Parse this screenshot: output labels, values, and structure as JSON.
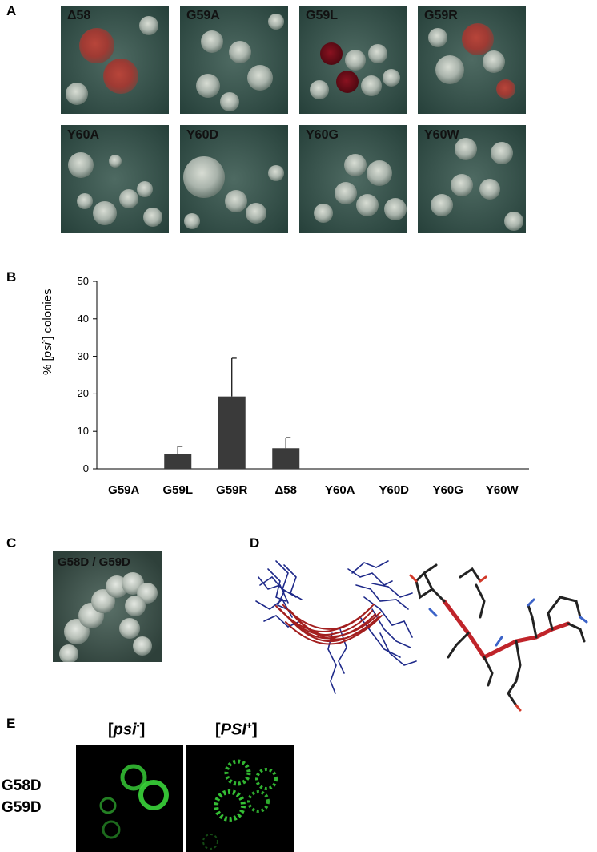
{
  "panels": {
    "a": "A",
    "b": "B",
    "c": "C",
    "d": "D",
    "e": "E"
  },
  "panel_a": {
    "colonies": [
      {
        "label": "Δ58",
        "tint": "red"
      },
      {
        "label": "G59A",
        "tint": "white"
      },
      {
        "label": "G59L",
        "tint": "mixed"
      },
      {
        "label": "G59R",
        "tint": "mixed"
      },
      {
        "label": "Y60A",
        "tint": "white"
      },
      {
        "label": "Y60D",
        "tint": "white"
      },
      {
        "label": "Y60G",
        "tint": "white"
      },
      {
        "label": "Y60W",
        "tint": "white"
      }
    ]
  },
  "chart_data": {
    "type": "bar",
    "categories": [
      "G59A",
      "G59L",
      "G59R",
      "Δ58",
      "Y60A",
      "Y60D",
      "Y60G",
      "Y60W"
    ],
    "values": [
      0,
      4,
      19.3,
      5.5,
      0,
      0,
      0,
      0
    ],
    "errors": [
      0,
      2,
      10.2,
      2.8,
      0,
      0,
      0,
      0
    ],
    "ylabel_prefix": "% [",
    "ylabel_italic": "psi",
    "ylabel_sup": "-",
    "ylabel_suffix": "] colonies",
    "ylim": [
      0,
      50
    ],
    "yticks": [
      0,
      10,
      20,
      30,
      40,
      50
    ],
    "bar_color": "#3a3a3a",
    "grid": false
  },
  "panel_c": {
    "label": "G58D / G59D"
  },
  "panel_e": {
    "col1_open": "[",
    "col1_italic": "psi",
    "col1_sup": "-",
    "col1_close": "]",
    "col2_open": "[",
    "col2_italic": "PSI",
    "col2_sup": "+",
    "col2_close": "]",
    "row_line1": "G58D",
    "row_line2": "G59D",
    "fluor_color": "#3ad43a"
  }
}
